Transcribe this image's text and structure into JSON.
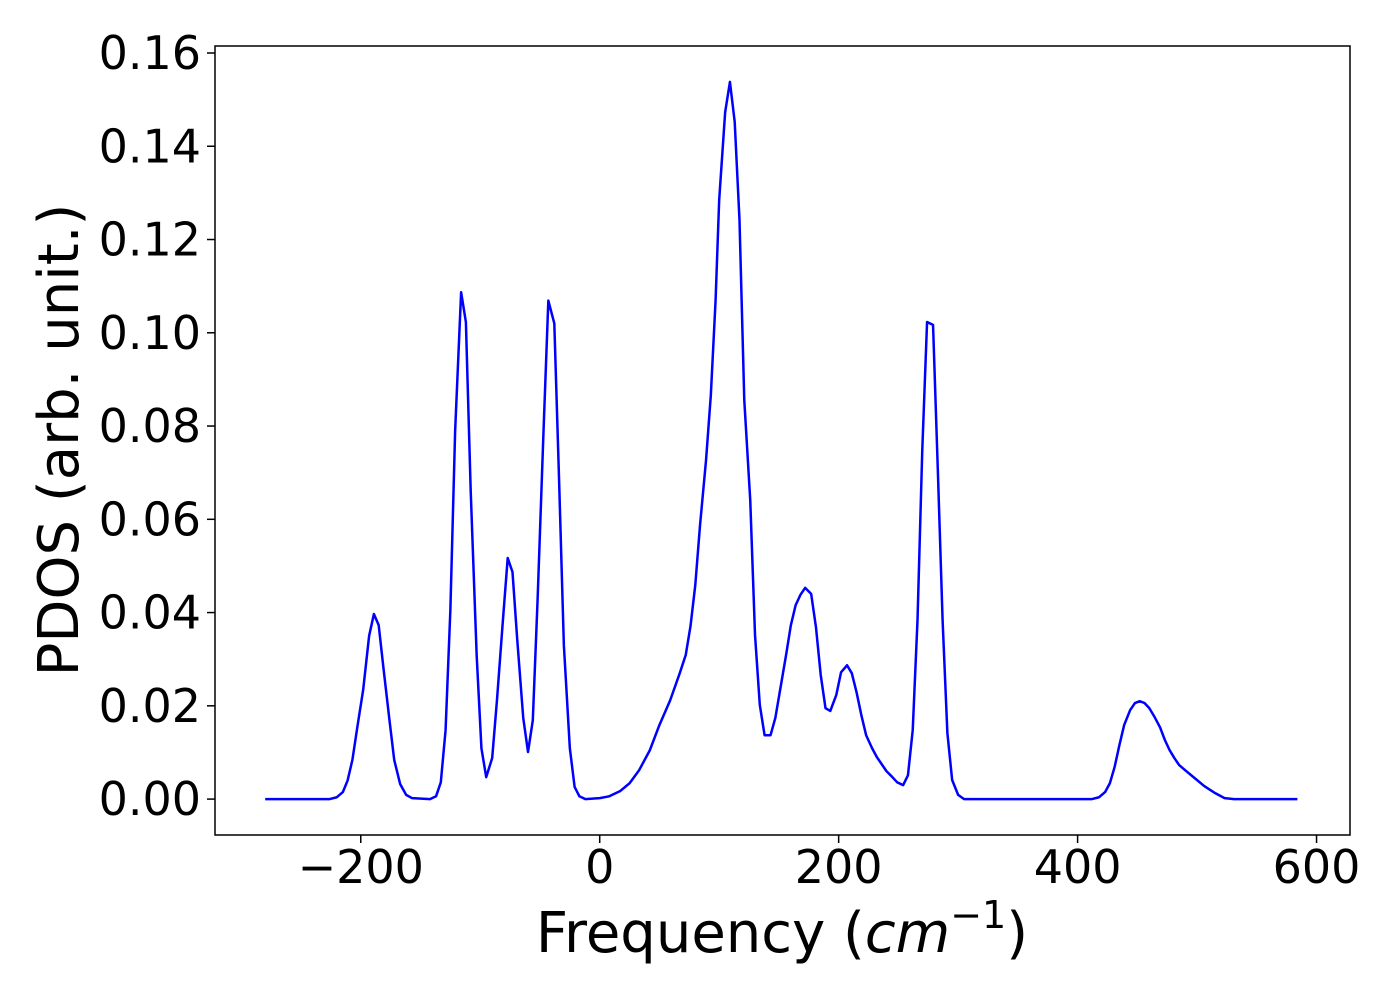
{
  "chart_data": {
    "type": "line",
    "xlabel": [
      "Frequency (",
      "cm",
      "−1",
      ")"
    ],
    "ylabel": "PDOS (arb. unit.)",
    "xlim": [
      -322,
      628
    ],
    "ylim": [
      -0.0077,
      0.1615
    ],
    "xticks": [
      {
        "value": -200,
        "label": "−200"
      },
      0,
      200,
      400,
      600
    ],
    "yticks": [
      {
        "value": 0,
        "label": "0.00"
      },
      {
        "value": 0.02,
        "label": "0.02"
      },
      {
        "value": 0.04,
        "label": "0.04"
      },
      {
        "value": 0.06,
        "label": "0.06"
      },
      {
        "value": 0.08,
        "label": "0.08"
      },
      {
        "value": 0.1,
        "label": "0.10"
      },
      {
        "value": 0.12,
        "label": "0.12"
      },
      {
        "value": 0.14,
        "label": "0.14"
      },
      {
        "value": 0.16,
        "label": "0.16"
      }
    ],
    "grid": false,
    "series": [
      {
        "color": "#0000ff",
        "x": [
          -280,
          -226,
          -220,
          -215,
          -211,
          -207,
          -203,
          -198,
          -193,
          -189,
          -185,
          -181,
          -176,
          -172,
          -167,
          -162,
          -157,
          -142,
          -137,
          -133,
          -129,
          -125,
          -121,
          -116,
          -112,
          -108,
          -103,
          -99,
          -95,
          -90,
          -86,
          -81,
          -77,
          -73,
          -69,
          -64,
          -60,
          -56,
          -52,
          -47,
          -43,
          -38,
          -34,
          -30,
          -25,
          -21,
          -17,
          -12,
          0,
          8,
          17,
          25,
          33,
          42,
          50,
          59,
          67,
          72,
          76,
          80,
          84,
          89,
          93,
          97,
          100,
          105,
          109,
          113,
          117,
          121,
          126,
          130,
          134,
          138,
          143,
          147,
          151,
          156,
          160,
          164,
          168,
          172,
          177,
          181,
          185,
          189,
          193,
          198,
          202,
          207,
          211,
          215,
          219,
          223,
          228,
          232,
          236,
          240,
          245,
          249,
          254,
          258,
          262,
          266,
          270,
          274,
          279,
          283,
          287,
          291,
          295,
          300,
          305,
          412,
          418,
          423,
          427,
          431,
          435,
          439,
          444,
          448,
          452,
          456,
          460,
          464,
          469,
          473,
          477,
          481,
          485,
          490,
          498,
          506,
          515,
          523,
          531,
          584
        ],
        "values": [
          0,
          0,
          0.0004,
          0.0015,
          0.004,
          0.0084,
          0.0152,
          0.0234,
          0.035,
          0.0397,
          0.0373,
          0.0281,
          0.017,
          0.0084,
          0.0032,
          0.0009,
          0.0002,
          0,
          0.0006,
          0.0036,
          0.0148,
          0.0405,
          0.079,
          0.1087,
          0.1023,
          0.0663,
          0.0309,
          0.0109,
          0.0047,
          0.0088,
          0.0212,
          0.0384,
          0.0517,
          0.0487,
          0.0341,
          0.0174,
          0.0101,
          0.0169,
          0.0427,
          0.0791,
          0.1069,
          0.102,
          0.0684,
          0.033,
          0.0109,
          0.0026,
          0.0006,
          0,
          0.0002,
          0.0006,
          0.0017,
          0.0034,
          0.0062,
          0.0105,
          0.0159,
          0.0212,
          0.027,
          0.0309,
          0.0371,
          0.0459,
          0.0588,
          0.0727,
          0.0866,
          0.107,
          0.1285,
          0.1473,
          0.1538,
          0.1452,
          0.1242,
          0.0856,
          0.0641,
          0.0352,
          0.0202,
          0.0137,
          0.0137,
          0.0174,
          0.0234,
          0.0309,
          0.0373,
          0.0416,
          0.0438,
          0.0453,
          0.044,
          0.0369,
          0.0266,
          0.0195,
          0.0189,
          0.0223,
          0.0272,
          0.0287,
          0.027,
          0.0229,
          0.018,
          0.0137,
          0.0109,
          0.009,
          0.0075,
          0.006,
          0.0047,
          0.0036,
          0.003,
          0.0051,
          0.0148,
          0.0384,
          0.0749,
          0.1023,
          0.1017,
          0.0706,
          0.0384,
          0.0142,
          0.0041,
          0.0009,
          0,
          0,
          0.0004,
          0.0015,
          0.0034,
          0.0069,
          0.0116,
          0.0159,
          0.0191,
          0.0206,
          0.021,
          0.0206,
          0.0195,
          0.0178,
          0.0154,
          0.0127,
          0.0105,
          0.0088,
          0.0073,
          0.0062,
          0.0045,
          0.0028,
          0.0013,
          0.0002,
          0,
          0
        ]
      }
    ]
  }
}
